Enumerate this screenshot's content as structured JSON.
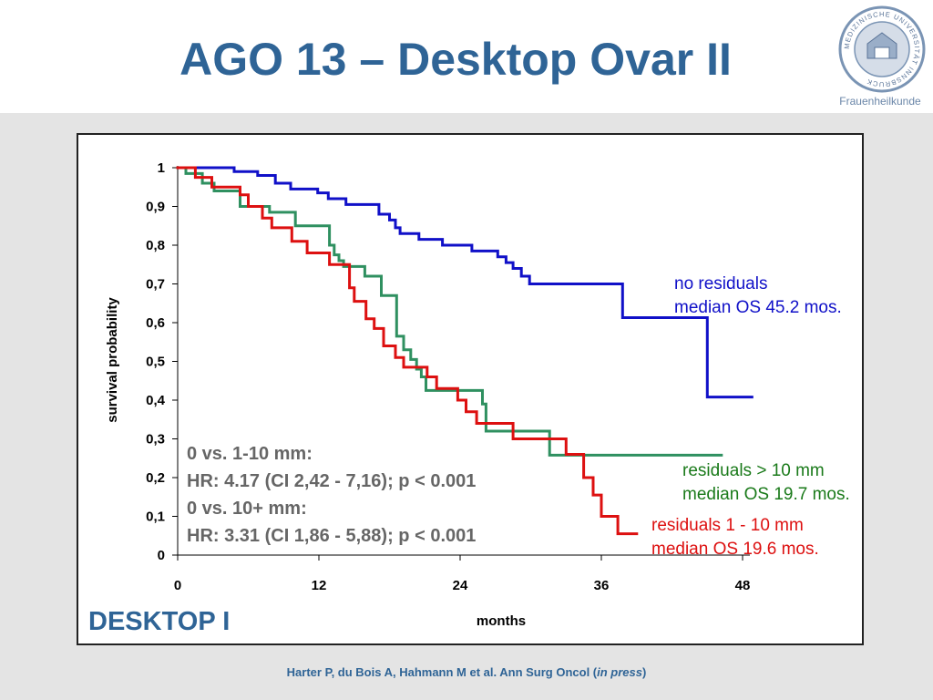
{
  "slide": {
    "title": "AGO 13 – Desktop Ovar II",
    "logo_caption": "Frauenheilkunde",
    "logo_ring_text": "MEDIZINISCHE UNIVERSITÄT INNSBRUCK",
    "panel_label": "DESKTOP I",
    "citation_main": "Harter P, du Bois A, Hahmann M et al. Ann Surg Oncol (",
    "citation_italic": "in press",
    "citation_end": ")"
  },
  "stats": {
    "line1": "0 vs. 1-10 mm:",
    "line2": "HR: 4.17 (CI 2,42 - 7,16); p < 0.001",
    "line3": "0 vs. 10+ mm:",
    "line4": "HR: 3.31 (CI 1,86 - 5,88); p < 0.001"
  },
  "annotations": {
    "blue_1": "no residuals",
    "blue_2": "median OS 45.2 mos.",
    "green_1": "residuals > 10 mm",
    "green_2": "median OS 19.7 mos.",
    "red_1": "residuals 1 - 10 mm",
    "red_2": "median OS 19.6 mos."
  },
  "chart_data": {
    "type": "line",
    "step": true,
    "title": "",
    "xlabel": "months",
    "ylabel": "survival probability",
    "xlim": [
      0,
      48
    ],
    "ylim": [
      0,
      1
    ],
    "x_ticks": [
      0,
      12,
      24,
      36,
      48
    ],
    "x_tick_labels": [
      "0",
      "12",
      "24",
      "36",
      "48"
    ],
    "y_ticks": [
      0,
      0.1,
      0.2,
      0.3,
      0.4,
      0.5,
      0.6,
      0.7,
      0.8,
      0.9,
      1
    ],
    "y_tick_labels": [
      "0",
      "0,1",
      "0,2",
      "0,3",
      "0,4",
      "0,5",
      "0,6",
      "0,7",
      "0,8",
      "0,9",
      "1"
    ],
    "grid": false,
    "series": [
      {
        "name": "no residuals",
        "color": "#1010c8",
        "points": [
          [
            0,
            1.0
          ],
          [
            4.8,
            1.0
          ],
          [
            4.8,
            0.99
          ],
          [
            6.8,
            0.99
          ],
          [
            6.8,
            0.98
          ],
          [
            8.3,
            0.98
          ],
          [
            8.3,
            0.96
          ],
          [
            9.6,
            0.96
          ],
          [
            9.6,
            0.945
          ],
          [
            11.9,
            0.945
          ],
          [
            11.9,
            0.935
          ],
          [
            12.8,
            0.935
          ],
          [
            12.8,
            0.92
          ],
          [
            14.3,
            0.92
          ],
          [
            14.3,
            0.905
          ],
          [
            17.1,
            0.905
          ],
          [
            17.1,
            0.88
          ],
          [
            18.0,
            0.88
          ],
          [
            18.0,
            0.865
          ],
          [
            18.5,
            0.865
          ],
          [
            18.5,
            0.845
          ],
          [
            18.9,
            0.845
          ],
          [
            18.9,
            0.83
          ],
          [
            20.5,
            0.83
          ],
          [
            20.5,
            0.815
          ],
          [
            22.5,
            0.815
          ],
          [
            22.5,
            0.8
          ],
          [
            25.0,
            0.8
          ],
          [
            25.0,
            0.785
          ],
          [
            27.2,
            0.785
          ],
          [
            27.2,
            0.77
          ],
          [
            27.9,
            0.77
          ],
          [
            27.9,
            0.755
          ],
          [
            28.5,
            0.755
          ],
          [
            28.5,
            0.74
          ],
          [
            29.2,
            0.74
          ],
          [
            29.2,
            0.72
          ],
          [
            29.9,
            0.72
          ],
          [
            29.9,
            0.7
          ],
          [
            37.8,
            0.7
          ],
          [
            37.8,
            0.613
          ],
          [
            45.0,
            0.613
          ],
          [
            45.0,
            0.408
          ],
          [
            48.8,
            0.408
          ]
        ]
      },
      {
        "name": "residuals > 10 mm",
        "color": "#2f9060",
        "points": [
          [
            0,
            1.0
          ],
          [
            0.7,
            1.0
          ],
          [
            0.7,
            0.985
          ],
          [
            2.1,
            0.985
          ],
          [
            2.1,
            0.96
          ],
          [
            3.1,
            0.96
          ],
          [
            3.1,
            0.94
          ],
          [
            5.3,
            0.94
          ],
          [
            5.3,
            0.9
          ],
          [
            7.8,
            0.9
          ],
          [
            7.8,
            0.885
          ],
          [
            10.0,
            0.885
          ],
          [
            10.0,
            0.85
          ],
          [
            12.9,
            0.85
          ],
          [
            12.9,
            0.8
          ],
          [
            13.3,
            0.8
          ],
          [
            13.3,
            0.775
          ],
          [
            13.7,
            0.775
          ],
          [
            13.7,
            0.76
          ],
          [
            14.1,
            0.76
          ],
          [
            14.1,
            0.745
          ],
          [
            15.9,
            0.745
          ],
          [
            15.9,
            0.72
          ],
          [
            17.3,
            0.72
          ],
          [
            17.3,
            0.67
          ],
          [
            18.6,
            0.67
          ],
          [
            18.6,
            0.565
          ],
          [
            19.2,
            0.565
          ],
          [
            19.2,
            0.53
          ],
          [
            19.8,
            0.53
          ],
          [
            19.8,
            0.505
          ],
          [
            20.3,
            0.505
          ],
          [
            20.3,
            0.48
          ],
          [
            20.7,
            0.48
          ],
          [
            20.7,
            0.46
          ],
          [
            21.1,
            0.46
          ],
          [
            21.1,
            0.425
          ],
          [
            25.9,
            0.425
          ],
          [
            25.9,
            0.39
          ],
          [
            26.2,
            0.39
          ],
          [
            26.2,
            0.32
          ],
          [
            31.6,
            0.32
          ],
          [
            31.6,
            0.258
          ],
          [
            46.2,
            0.258
          ]
        ]
      },
      {
        "name": "residuals 1 - 10 mm",
        "color": "#dd1010",
        "points": [
          [
            0,
            1.0
          ],
          [
            1.5,
            1.0
          ],
          [
            1.5,
            0.975
          ],
          [
            2.9,
            0.975
          ],
          [
            2.9,
            0.95
          ],
          [
            5.3,
            0.95
          ],
          [
            5.3,
            0.93
          ],
          [
            6.0,
            0.93
          ],
          [
            6.0,
            0.9
          ],
          [
            7.2,
            0.9
          ],
          [
            7.2,
            0.87
          ],
          [
            8.0,
            0.87
          ],
          [
            8.0,
            0.845
          ],
          [
            9.7,
            0.845
          ],
          [
            9.7,
            0.81
          ],
          [
            11.0,
            0.81
          ],
          [
            11.0,
            0.78
          ],
          [
            12.9,
            0.78
          ],
          [
            12.9,
            0.75
          ],
          [
            14.6,
            0.75
          ],
          [
            14.6,
            0.69
          ],
          [
            15.0,
            0.69
          ],
          [
            15.0,
            0.655
          ],
          [
            16.0,
            0.655
          ],
          [
            16.0,
            0.61
          ],
          [
            16.7,
            0.61
          ],
          [
            16.7,
            0.585
          ],
          [
            17.5,
            0.585
          ],
          [
            17.5,
            0.54
          ],
          [
            18.5,
            0.54
          ],
          [
            18.5,
            0.51
          ],
          [
            19.2,
            0.51
          ],
          [
            19.2,
            0.485
          ],
          [
            21.2,
            0.485
          ],
          [
            21.2,
            0.46
          ],
          [
            22.0,
            0.46
          ],
          [
            22.0,
            0.43
          ],
          [
            23.8,
            0.43
          ],
          [
            23.8,
            0.4
          ],
          [
            24.5,
            0.4
          ],
          [
            24.5,
            0.37
          ],
          [
            25.4,
            0.37
          ],
          [
            25.4,
            0.34
          ],
          [
            28.5,
            0.34
          ],
          [
            28.5,
            0.3
          ],
          [
            33.0,
            0.3
          ],
          [
            33.0,
            0.26
          ],
          [
            34.5,
            0.26
          ],
          [
            34.5,
            0.2
          ],
          [
            35.3,
            0.2
          ],
          [
            35.3,
            0.155
          ],
          [
            36.0,
            0.155
          ],
          [
            36.0,
            0.1
          ],
          [
            37.4,
            0.1
          ],
          [
            37.4,
            0.055
          ],
          [
            39.0,
            0.055
          ]
        ]
      }
    ]
  }
}
